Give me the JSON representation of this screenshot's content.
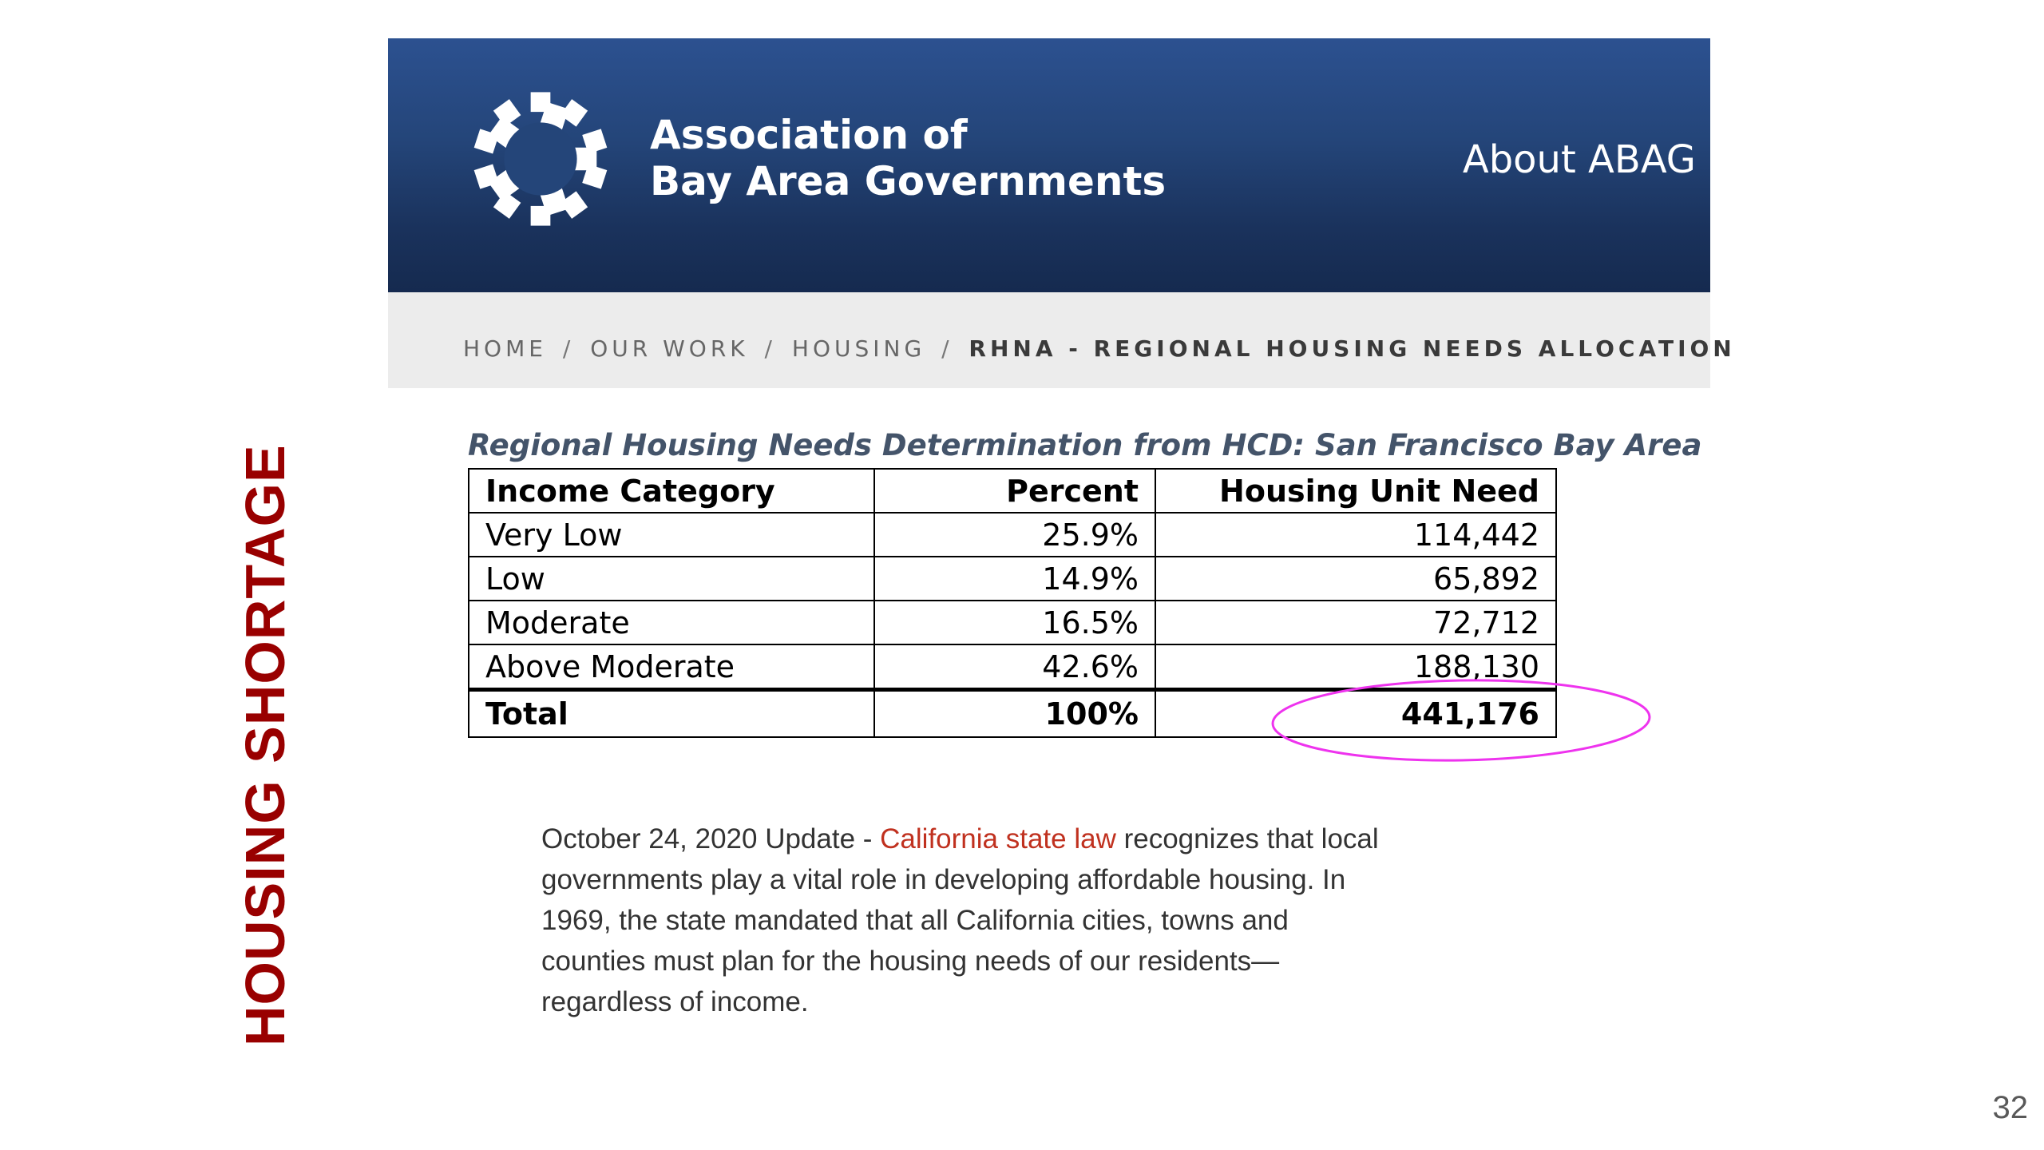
{
  "slide": {
    "side_title": "HOUSING SHORTAGE",
    "page_number": "32"
  },
  "header": {
    "logo_icon": "abag-sunburst-logo",
    "org_name_line1": "Association of",
    "org_name_line2": "Bay Area Governments",
    "about_link": "About ABAG",
    "colors": {
      "band_top": "#2c5190",
      "band_bottom": "#152a4f"
    }
  },
  "breadcrumb": {
    "items": [
      "HOME",
      "OUR WORK",
      "HOUSING"
    ],
    "current": "RHNA - REGIONAL HOUSING NEEDS ALLOCATION",
    "separator": "/"
  },
  "table": {
    "caption": "Regional Housing Needs Determination from HCD: San Francisco Bay Area",
    "headers": [
      "Income Category",
      "Percent",
      "Housing Unit Need"
    ],
    "rows": [
      [
        "Very Low",
        "25.9%",
        "114,442"
      ],
      [
        "Low",
        "14.9%",
        "65,892"
      ],
      [
        "Moderate",
        "16.5%",
        "72,712"
      ],
      [
        "Above Moderate",
        "42.6%",
        "188,130"
      ]
    ],
    "total": [
      "Total",
      "100%",
      "441,176"
    ],
    "highlight_color": "#ee33ee"
  },
  "update": {
    "lead": "October 24, 2020 Update - ",
    "link_text": "California state law",
    "body": " recognizes that local governments play a vital role in developing affordable housing. In 1969, the state mandated that all California cities, towns and counties must plan for the housing needs of our residents—regardless of income.",
    "link_color": "#c0311f"
  }
}
